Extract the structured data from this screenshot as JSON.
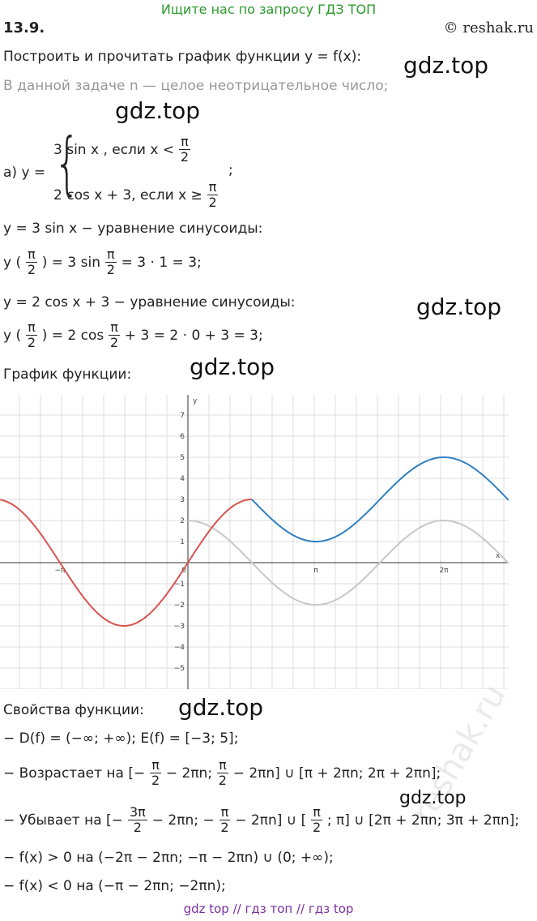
{
  "header": {
    "banner": "Ищите нас по запросу ГДЗ ТОП",
    "number": "13.9.",
    "site": "© reshak.ru"
  },
  "task": "Построить и прочитать график функции y = f(x):",
  "note": "В данной задаче n — целое неотрицательное число;",
  "system": {
    "label": "а) y =",
    "cases": [
      [
        "3 sin x , если x <",
        {
          "num": "π",
          "den": "2"
        }
      ],
      [
        "2 cos x + 3, если x ≥",
        {
          "num": "π",
          "den": "2"
        }
      ]
    ],
    "end": ";"
  },
  "lines": [
    [
      "y = 3 sin x − уравнение синусоиды:"
    ],
    [
      "y (",
      {
        "num": "π",
        "den": "2"
      },
      ") = 3 sin",
      {
        "num": "π",
        "den": "2"
      },
      "= 3 · 1 = 3;"
    ],
    [
      "y = 2 cos x + 3 − уравнение синусоиды:"
    ],
    [
      "y (",
      {
        "num": "π",
        "den": "2"
      },
      ") = 2 cos",
      {
        "num": "π",
        "den": "2"
      },
      "+ 3 = 2 · 0 + 3 = 3;"
    ],
    [
      "График функции:"
    ],
    [
      "Свойства функции:"
    ],
    [
      "− D(f) = (−∞; +∞); E(f) = [−3; 5];"
    ],
    [
      "− Возрастает на [−",
      {
        "num": "π",
        "den": "2"
      },
      "− 2πn;",
      {
        "num": "π",
        "den": "2"
      },
      "− 2πn] ∪ [π + 2πn; 2π + 2πn];"
    ],
    [
      "− Убывает на [−",
      {
        "num": "3π",
        "den": "2"
      },
      "− 2πn; −",
      {
        "num": "π",
        "den": "2"
      },
      "− 2πn] ∪ [",
      {
        "num": "π",
        "den": "2"
      },
      "; π] ∪ [2π + 2πn; 3π + 2πn];"
    ],
    [
      "− f(x) > 0 на (−2π − 2πn; −π − 2πn) ∪ (0; +∞);"
    ],
    [
      "− f(x) < 0 на (−π − 2πn; −2πn);"
    ]
  ],
  "graph": {
    "x_axis": "x",
    "y_axis": "y",
    "y_labels": [
      "7",
      "6",
      "5",
      "4",
      "3",
      "2",
      "1",
      "−1",
      "−2",
      "−3",
      "−4",
      "−5"
    ],
    "x_labels": [
      "−π",
      "0",
      "π",
      "2π"
    ]
  },
  "watermarks": [
    "gdz.top",
    "gdz.top",
    "gdz.top",
    "gdz.top",
    "gdz.top",
    "gdz.top"
  ],
  "reshak_mark": "reshak.ru",
  "footer": "gdz top  //  гдз топ  //  гдз top"
}
